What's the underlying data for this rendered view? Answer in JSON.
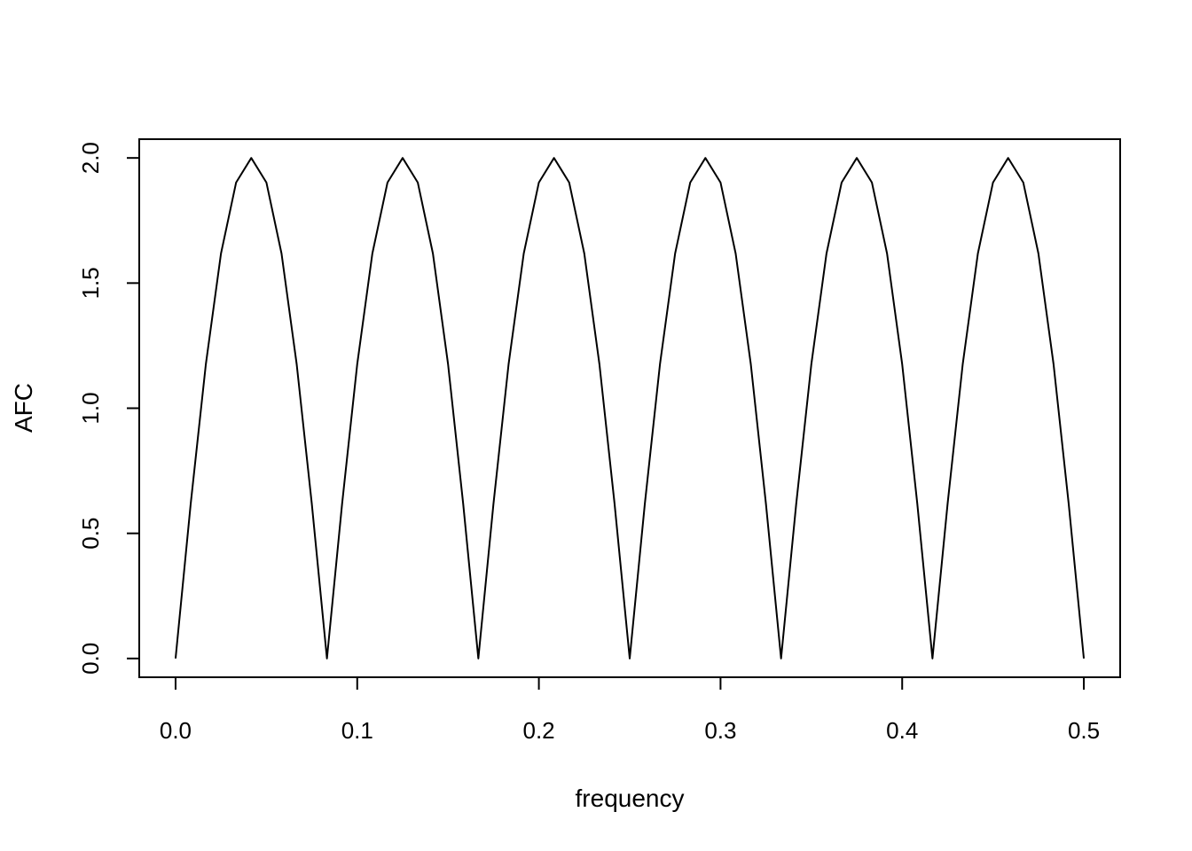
{
  "chart_data": {
    "type": "line",
    "title": "",
    "xlabel": "frequency",
    "ylabel": "AFC",
    "xlim": [
      -0.02,
      0.52
    ],
    "ylim": [
      -0.075,
      2.075
    ],
    "x_ticks": [
      0.0,
      0.1,
      0.2,
      0.3,
      0.4,
      0.5
    ],
    "x_tick_labels": [
      "0.0",
      "0.1",
      "0.2",
      "0.3",
      "0.4",
      "0.5"
    ],
    "y_ticks": [
      0.0,
      0.5,
      1.0,
      1.5,
      2.0
    ],
    "y_tick_labels": [
      "0.0",
      "0.5",
      "1.0",
      "1.5",
      "2.0"
    ],
    "grid": false,
    "legend": "none",
    "series": [
      {
        "color": "#000000",
        "x": [
          0.0,
          0.00833,
          0.01667,
          0.025,
          0.03333,
          0.04167,
          0.05,
          0.05833,
          0.06667,
          0.075,
          0.08333,
          0.09167,
          0.1,
          0.10833,
          0.11667,
          0.125,
          0.13333,
          0.14167,
          0.15,
          0.15833,
          0.16667,
          0.175,
          0.18333,
          0.19167,
          0.2,
          0.20833,
          0.21667,
          0.225,
          0.23333,
          0.24167,
          0.25,
          0.25833,
          0.26667,
          0.275,
          0.28333,
          0.29167,
          0.3,
          0.30833,
          0.31667,
          0.325,
          0.33333,
          0.34167,
          0.35,
          0.35833,
          0.36667,
          0.375,
          0.38333,
          0.39167,
          0.4,
          0.40833,
          0.41667,
          0.425,
          0.43333,
          0.44167,
          0.45,
          0.45833,
          0.46667,
          0.475,
          0.48333,
          0.49167,
          0.5
        ],
        "y": [
          0.0,
          0.618,
          1.176,
          1.618,
          1.902,
          2.0,
          1.902,
          1.618,
          1.176,
          0.618,
          0.0,
          0.618,
          1.176,
          1.618,
          1.902,
          2.0,
          1.902,
          1.618,
          1.176,
          0.618,
          0.0,
          0.618,
          1.176,
          1.618,
          1.902,
          2.0,
          1.902,
          1.618,
          1.176,
          0.618,
          0.0,
          0.618,
          1.176,
          1.618,
          1.902,
          2.0,
          1.902,
          1.618,
          1.176,
          0.618,
          0.0,
          0.618,
          1.176,
          1.618,
          1.902,
          2.0,
          1.902,
          1.618,
          1.176,
          0.618,
          0.0,
          0.618,
          1.176,
          1.618,
          1.902,
          2.0,
          1.902,
          1.618,
          1.176,
          0.618,
          0.0
        ]
      }
    ]
  }
}
